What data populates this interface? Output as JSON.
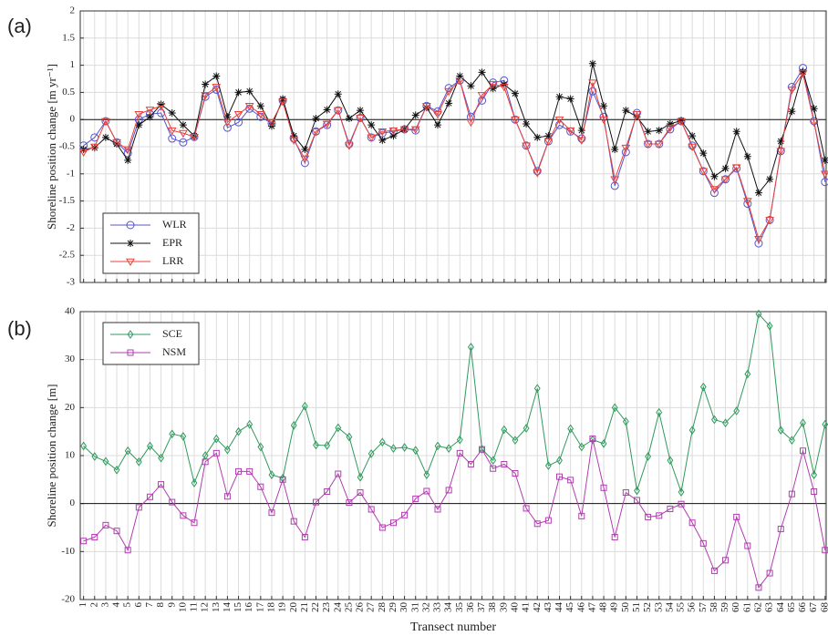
{
  "chart_data": [
    {
      "type": "line",
      "panel_label": "(a)",
      "y_label": "Shoreline position change [m yr⁻¹]",
      "x": [
        1,
        2,
        3,
        4,
        5,
        6,
        7,
        8,
        9,
        10,
        11,
        12,
        13,
        14,
        15,
        16,
        17,
        18,
        19,
        20,
        21,
        22,
        23,
        24,
        25,
        26,
        27,
        28,
        29,
        30,
        31,
        32,
        33,
        34,
        35,
        36,
        37,
        38,
        39,
        40,
        41,
        42,
        43,
        44,
        45,
        46,
        47,
        48,
        49,
        50,
        51,
        52,
        53,
        54,
        55,
        56,
        57,
        58,
        59,
        60,
        61,
        62,
        63,
        64,
        65,
        66,
        67,
        68
      ],
      "xlim": [
        0.7,
        68.1
      ],
      "xticks": [
        1,
        2,
        3,
        4,
        5,
        6,
        7,
        8,
        9,
        10,
        11,
        12,
        13,
        14,
        15,
        16,
        17,
        18,
        19,
        20,
        21,
        22,
        23,
        24,
        25,
        26,
        27,
        28,
        29,
        30,
        31,
        32,
        33,
        34,
        35,
        36,
        37,
        38,
        39,
        40,
        41,
        42,
        43,
        44,
        45,
        46,
        47,
        48,
        49,
        50,
        51,
        52,
        53,
        54,
        55,
        56,
        57,
        58,
        59,
        60,
        61,
        62,
        63,
        64,
        65,
        66,
        67,
        68
      ],
      "xtick_labels": false,
      "ylim": [
        -3,
        2
      ],
      "yticks": [
        2,
        1.5,
        1,
        0.5,
        0,
        -0.5,
        -1,
        -1.5,
        -2,
        -2.5,
        -3
      ],
      "grid": true,
      "reference_line": 0,
      "legend": "lower left",
      "series": [
        {
          "name": "WLR",
          "color": "#5555cc",
          "marker": "circle",
          "values": [
            -0.48,
            -0.33,
            -0.03,
            -0.42,
            -0.62,
            0.0,
            0.1,
            0.12,
            -0.35,
            -0.42,
            -0.32,
            0.42,
            0.55,
            -0.15,
            -0.05,
            0.2,
            0.05,
            -0.07,
            0.35,
            -0.35,
            -0.8,
            -0.22,
            -0.1,
            0.17,
            -0.45,
            0.03,
            -0.33,
            -0.25,
            -0.22,
            -0.18,
            -0.2,
            0.25,
            0.15,
            0.58,
            0.72,
            0.05,
            0.35,
            0.68,
            0.72,
            0.0,
            -0.48,
            -0.95,
            -0.4,
            -0.1,
            -0.22,
            -0.35,
            0.52,
            0.05,
            -1.22,
            -0.6,
            0.12,
            -0.45,
            -0.45,
            -0.18,
            -0.03,
            -0.48,
            -0.95,
            -1.35,
            -1.1,
            -0.9,
            -1.55,
            -2.28,
            -1.85,
            -0.58,
            0.6,
            0.95,
            -0.03,
            -1.15
          ]
        },
        {
          "name": "EPR",
          "color": "#111111",
          "marker": "star",
          "values": [
            -0.55,
            -0.52,
            -0.33,
            -0.45,
            -0.75,
            -0.1,
            0.05,
            0.28,
            0.12,
            -0.1,
            -0.3,
            0.65,
            0.8,
            0.05,
            0.5,
            0.52,
            0.25,
            -0.12,
            0.38,
            -0.3,
            -0.55,
            0.02,
            0.18,
            0.47,
            0.02,
            0.17,
            -0.1,
            -0.38,
            -0.3,
            -0.18,
            0.08,
            0.22,
            -0.1,
            0.3,
            0.8,
            0.62,
            0.87,
            0.57,
            0.65,
            0.48,
            -0.08,
            -0.33,
            -0.3,
            0.42,
            0.38,
            -0.2,
            1.03,
            0.25,
            -0.55,
            0.17,
            0.05,
            -0.22,
            -0.2,
            -0.08,
            -0.02,
            -0.3,
            -0.62,
            -1.05,
            -0.9,
            -0.22,
            -0.68,
            -1.35,
            -1.1,
            -0.4,
            0.15,
            0.88,
            0.2,
            -0.75
          ]
        },
        {
          "name": "LRR",
          "color": "#e8403a",
          "marker": "triangle-down",
          "values": [
            -0.6,
            -0.5,
            -0.03,
            -0.42,
            -0.55,
            0.1,
            0.18,
            0.25,
            -0.2,
            -0.25,
            -0.32,
            0.45,
            0.6,
            -0.05,
            0.1,
            0.25,
            0.1,
            -0.05,
            0.33,
            -0.38,
            -0.72,
            -0.22,
            -0.08,
            0.17,
            -0.48,
            0.03,
            -0.33,
            -0.22,
            -0.2,
            -0.18,
            -0.18,
            0.25,
            0.1,
            0.52,
            0.72,
            -0.05,
            0.45,
            0.65,
            0.6,
            0.0,
            -0.48,
            -0.98,
            -0.4,
            0.0,
            -0.2,
            -0.38,
            0.68,
            0.0,
            -1.1,
            -0.52,
            0.1,
            -0.45,
            -0.45,
            -0.15,
            -0.03,
            -0.5,
            -0.95,
            -1.28,
            -1.1,
            -0.88,
            -1.5,
            -2.2,
            -1.85,
            -0.58,
            0.55,
            0.85,
            -0.05,
            -1.0
          ]
        }
      ]
    },
    {
      "type": "line",
      "panel_label": "(b)",
      "y_label": "Shoreline position change [m]",
      "x_label": "Transect number",
      "x": [
        1,
        2,
        3,
        4,
        5,
        6,
        7,
        8,
        9,
        10,
        11,
        12,
        13,
        14,
        15,
        16,
        17,
        18,
        19,
        20,
        21,
        22,
        23,
        24,
        25,
        26,
        27,
        28,
        29,
        30,
        31,
        32,
        33,
        34,
        35,
        36,
        37,
        38,
        39,
        40,
        41,
        42,
        43,
        44,
        45,
        46,
        47,
        48,
        49,
        50,
        51,
        52,
        53,
        54,
        55,
        56,
        57,
        58,
        59,
        60,
        61,
        62,
        63,
        64,
        65,
        66,
        67,
        68
      ],
      "xlim": [
        0.7,
        68.1
      ],
      "xticks": [
        1,
        2,
        3,
        4,
        5,
        6,
        7,
        8,
        9,
        10,
        11,
        12,
        13,
        14,
        15,
        16,
        17,
        18,
        19,
        20,
        21,
        22,
        23,
        24,
        25,
        26,
        27,
        28,
        29,
        30,
        31,
        32,
        33,
        34,
        35,
        36,
        37,
        38,
        39,
        40,
        41,
        42,
        43,
        44,
        45,
        46,
        47,
        48,
        49,
        50,
        51,
        52,
        53,
        54,
        55,
        56,
        57,
        58,
        59,
        60,
        61,
        62,
        63,
        64,
        65,
        66,
        67,
        68
      ],
      "xtick_labels": true,
      "ylim": [
        -20,
        40
      ],
      "yticks": [
        40,
        30,
        20,
        10,
        0,
        -10,
        -20
      ],
      "grid": true,
      "reference_line": 0,
      "legend": "upper left",
      "series": [
        {
          "name": "SCE",
          "color": "#2f9a5c",
          "marker": "diamond",
          "values": [
            12,
            9.8,
            8.8,
            7,
            11,
            8.7,
            12,
            9.5,
            14.5,
            14,
            4.3,
            10,
            13.5,
            11.2,
            15,
            16.5,
            11.8,
            6,
            5.3,
            16.3,
            20.3,
            12.2,
            12.1,
            15.8,
            13.9,
            5.5,
            10.4,
            12.8,
            11.5,
            11.7,
            11.1,
            6,
            12,
            11.5,
            13.3,
            32.6,
            11.3,
            9,
            15.4,
            13.2,
            15.7,
            24,
            7.9,
            9,
            15.6,
            11.8,
            13.3,
            12.5,
            20,
            17.1,
            2.7,
            9.8,
            19,
            9,
            2.4,
            15.3,
            24.3,
            17.5,
            16.8,
            19.3,
            27,
            39.5,
            37,
            15.3,
            13.2,
            16.8,
            6,
            16.5
          ]
        },
        {
          "name": "NSM",
          "color": "#b23cb0",
          "marker": "square",
          "values": [
            -7.8,
            -7,
            -4.5,
            -5.7,
            -9.7,
            -0.8,
            1.4,
            4,
            0.3,
            -2.5,
            -4,
            8.7,
            10.5,
            1.5,
            6.7,
            6.7,
            3.5,
            -1.9,
            5,
            -3.7,
            -7,
            0.3,
            2.5,
            6.2,
            0.2,
            2.3,
            -1.2,
            -5,
            -4,
            -2.4,
            1,
            2.6,
            -1.2,
            2.8,
            10.5,
            8.2,
            11.3,
            7.3,
            8.2,
            6.3,
            -1,
            -4.2,
            -3.5,
            5.6,
            4.9,
            -2.6,
            13.5,
            3.3,
            -7,
            2.3,
            0.7,
            -2.8,
            -2.5,
            -1.1,
            -0.1,
            -4,
            -8.3,
            -14,
            -11.8,
            -2.8,
            -8.8,
            -17.5,
            -14.5,
            -5.3,
            2,
            11,
            2.5,
            -9.7
          ]
        }
      ]
    }
  ]
}
